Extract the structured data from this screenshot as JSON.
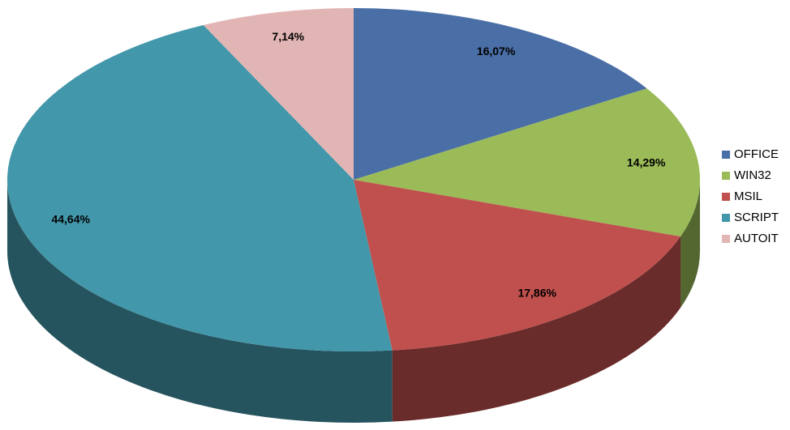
{
  "chart_data": {
    "type": "pie3d",
    "categories": [
      "OFFICE",
      "WIN32",
      "MSIL",
      "SCRIPT",
      "AUTOIT"
    ],
    "values": [
      16.07,
      14.29,
      17.86,
      44.64,
      7.14
    ],
    "value_labels": [
      "16,07%",
      "14,29%",
      "17,86%",
      "44,64%",
      "7,14%"
    ],
    "colors": [
      "#4a6ea6",
      "#9bbb59",
      "#c0504d",
      "#4397aa",
      "#e2b5b5"
    ],
    "legend": "right"
  }
}
